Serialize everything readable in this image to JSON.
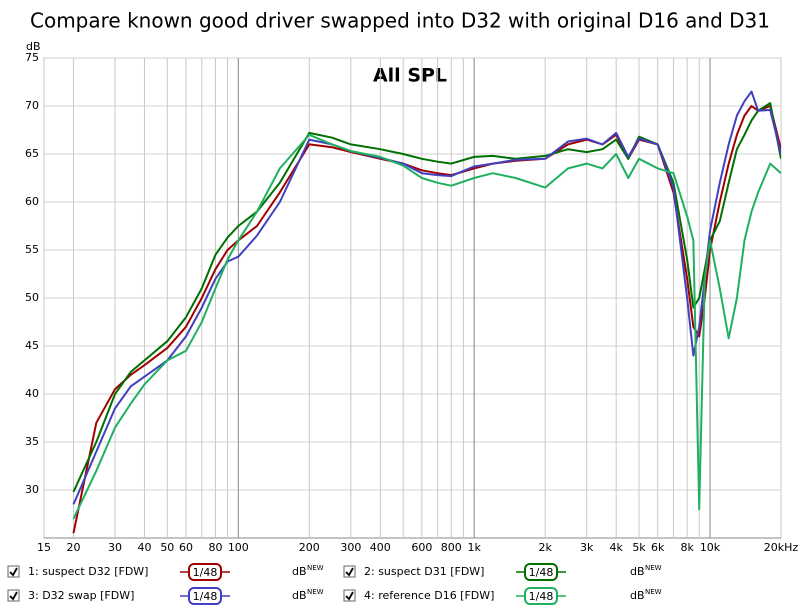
{
  "chart_data": {
    "type": "line",
    "title": "Compare known good driver swapped into D32 with original D16 and D31",
    "annotation": "All SPL",
    "y_label": "dB",
    "log_x": true,
    "grid": true,
    "xlim": [
      15,
      20000
    ],
    "ylim": [
      25,
      75
    ],
    "yticks": [
      30,
      35,
      40,
      45,
      50,
      55,
      60,
      65,
      70,
      75
    ],
    "xticks": [
      15,
      20,
      30,
      40,
      50,
      60,
      {
        "value": 70,
        "label": null
      },
      80,
      {
        "value": 90,
        "label": null
      },
      100,
      200,
      300,
      400,
      {
        "value": 500,
        "label": null
      },
      600,
      {
        "value": 700,
        "label": null
      },
      800,
      {
        "value": 900,
        "label": null
      },
      {
        "value": 1000,
        "label": "1k"
      },
      {
        "value": 2000,
        "label": "2k"
      },
      {
        "value": 3000,
        "label": "3k"
      },
      {
        "value": 4000,
        "label": "4k"
      },
      {
        "value": 5000,
        "label": "5k"
      },
      {
        "value": 6000,
        "label": "6k"
      },
      {
        "value": 7000,
        "label": null
      },
      {
        "value": 8000,
        "label": "8k"
      },
      {
        "value": 9000,
        "label": null
      },
      {
        "value": 10000,
        "label": "10k"
      },
      {
        "value": 20000,
        "label": "20kHz"
      }
    ],
    "legend_smoothing": "1/48",
    "legend_unit": "dB",
    "legend_unit_tag": "NEW",
    "x": [
      20,
      25,
      30,
      35,
      40,
      50,
      60,
      70,
      80,
      90,
      100,
      120,
      150,
      200,
      250,
      300,
      400,
      500,
      600,
      700,
      800,
      1000,
      1200,
      1500,
      2000,
      2500,
      3000,
      3500,
      4000,
      4500,
      5000,
      6000,
      7000,
      8000,
      8500,
      9000,
      9500,
      10000,
      11000,
      12000,
      13000,
      14000,
      15000,
      16000,
      18000,
      20000
    ],
    "series": [
      {
        "name": "1: suspect D32 [FDW]",
        "color": "#a00000",
        "values": [
          25.5,
          37,
          40.5,
          42,
          43,
          44.8,
          47,
          50,
          53,
          55,
          56,
          57.5,
          61,
          66,
          65.7,
          65.2,
          64.5,
          64,
          63.3,
          63,
          62.8,
          63.5,
          64,
          64.3,
          64.5,
          66,
          66.5,
          66,
          67,
          64.5,
          66.5,
          66,
          61,
          52,
          47,
          46,
          50,
          55,
          60,
          64,
          67,
          69,
          70,
          69.5,
          70,
          65.5
        ]
      },
      {
        "name": "2: suspect D31 [FDW]",
        "color": "#007000",
        "values": [
          29.8,
          35,
          40,
          42.3,
          43.5,
          45.5,
          48,
          51,
          54.5,
          56.3,
          57.5,
          59,
          62,
          67.2,
          66.7,
          66,
          65.5,
          65,
          64.5,
          64.2,
          64,
          64.7,
          64.8,
          64.5,
          64.8,
          65.5,
          65.2,
          65.5,
          66.5,
          64.5,
          66.8,
          66,
          62,
          54,
          49,
          50,
          53,
          56,
          58,
          62,
          65.5,
          67,
          68.5,
          69.5,
          70.3,
          64.5
        ]
      },
      {
        "name": "3: D32 swap [FDW]",
        "color": "#4040c0",
        "values": [
          28.5,
          34,
          38.5,
          40.8,
          41.8,
          43.5,
          46,
          49,
          52,
          53.8,
          54.3,
          56.5,
          60,
          66.5,
          66,
          65.3,
          64.6,
          64,
          63,
          62.8,
          62.7,
          63.7,
          64,
          64.4,
          64.5,
          66.3,
          66.6,
          66,
          67.2,
          64.7,
          66.6,
          66,
          61.5,
          50,
          44,
          47,
          52,
          57,
          62,
          66,
          69,
          70.5,
          71.5,
          69.5,
          69.6,
          65
        ]
      },
      {
        "name": "4: reference D16 [FDW]",
        "color": "#20b060",
        "values": [
          27,
          32,
          36.5,
          39,
          41,
          43.5,
          44.5,
          47.5,
          51,
          54,
          56,
          59,
          63.5,
          67,
          66,
          65.3,
          64.7,
          63.8,
          62.5,
          62,
          61.7,
          62.5,
          63,
          62.5,
          61.5,
          63.5,
          64,
          63.5,
          65,
          62.5,
          64.5,
          63.5,
          63,
          58.5,
          56,
          28,
          52,
          56,
          51,
          45.8,
          50,
          56,
          59,
          61,
          64,
          63
        ]
      }
    ]
  }
}
